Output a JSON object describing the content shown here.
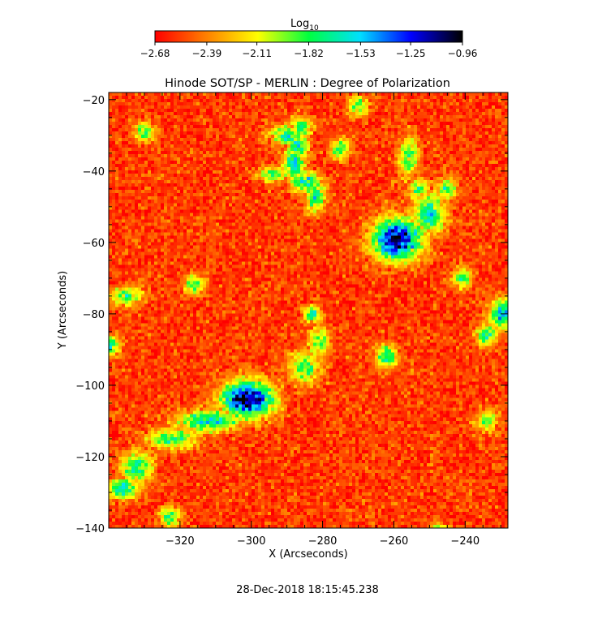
{
  "chart_data": {
    "type": "heatmap",
    "title": "Hinode SOT/SP - MERLIN : Degree of Polarization",
    "xlabel": "X (Arcseconds)",
    "ylabel": "Y (Arcseconds)",
    "xlim": [
      -340,
      -228
    ],
    "ylim": [
      -140,
      -18
    ],
    "xticks": [
      -320,
      -300,
      -280,
      -260,
      -240
    ],
    "yticks": [
      -20,
      -40,
      -60,
      -80,
      -100,
      -120,
      -140
    ],
    "colorbar": {
      "label_base": "Log",
      "label_sub": "10",
      "ticks": [
        -2.68,
        -2.39,
        -2.11,
        -1.82,
        -1.53,
        -1.25,
        -0.96
      ],
      "tick_labels": [
        "−2.68",
        "−2.39",
        "−2.11",
        "−1.82",
        "−1.53",
        "−1.25",
        "−0.96"
      ],
      "colormap": [
        "#ff0000",
        "#ff8000",
        "#ffff00",
        "#00ff40",
        "#00e0ff",
        "#0000ff",
        "#000000"
      ]
    },
    "background_value": -2.55,
    "features": [
      {
        "x": -301,
        "y": -104,
        "sx": 5,
        "sy": 3.5,
        "peak": -0.96
      },
      {
        "x": -259,
        "y": -59,
        "sx": 5,
        "sy": 4,
        "peak": -1.05
      },
      {
        "x": -312,
        "y": -110,
        "sx": 6,
        "sy": 2,
        "peak": -1.6
      },
      {
        "x": -322,
        "y": -115,
        "sx": 5,
        "sy": 2,
        "peak": -1.75
      },
      {
        "x": -332,
        "y": -123,
        "sx": 3,
        "sy": 3,
        "peak": -1.7
      },
      {
        "x": -336,
        "y": -129,
        "sx": 3,
        "sy": 2,
        "peak": -1.6
      },
      {
        "x": -285,
        "y": -95,
        "sx": 3,
        "sy": 3,
        "peak": -1.8
      },
      {
        "x": -281,
        "y": -88,
        "sx": 2,
        "sy": 3,
        "peak": -1.85
      },
      {
        "x": -282,
        "y": -47,
        "sx": 2,
        "sy": 3,
        "peak": -1.7
      },
      {
        "x": -285,
        "y": -43,
        "sx": 3,
        "sy": 2,
        "peak": -1.6
      },
      {
        "x": -288,
        "y": -38,
        "sx": 2,
        "sy": 3,
        "peak": -1.55
      },
      {
        "x": -287,
        "y": -33,
        "sx": 2,
        "sy": 3,
        "peak": -1.6
      },
      {
        "x": -290,
        "y": -30,
        "sx": 3,
        "sy": 2,
        "peak": -1.7
      },
      {
        "x": -286,
        "y": -28,
        "sx": 2,
        "sy": 2,
        "peak": -1.75
      },
      {
        "x": -294,
        "y": -41,
        "sx": 3,
        "sy": 1.5,
        "peak": -1.85
      },
      {
        "x": -275,
        "y": -34,
        "sx": 2,
        "sy": 2,
        "peak": -1.8
      },
      {
        "x": -250,
        "y": -52,
        "sx": 3,
        "sy": 4,
        "peak": -1.6
      },
      {
        "x": -245,
        "y": -45,
        "sx": 2,
        "sy": 2,
        "peak": -1.8
      },
      {
        "x": -253,
        "y": -45,
        "sx": 2,
        "sy": 2,
        "peak": -1.8
      },
      {
        "x": -256,
        "y": -36,
        "sx": 2,
        "sy": 4,
        "peak": -1.8
      },
      {
        "x": -229,
        "y": -80,
        "sx": 3,
        "sy": 3,
        "peak": -1.5
      },
      {
        "x": -234,
        "y": -86,
        "sx": 2,
        "sy": 2,
        "peak": -1.7
      },
      {
        "x": -262,
        "y": -92,
        "sx": 2,
        "sy": 2,
        "peak": -1.6
      },
      {
        "x": -283,
        "y": -80,
        "sx": 1.5,
        "sy": 1.5,
        "peak": -1.6
      },
      {
        "x": -340,
        "y": -89,
        "sx": 2,
        "sy": 2,
        "peak": -1.6
      },
      {
        "x": -335,
        "y": -75,
        "sx": 3,
        "sy": 2,
        "peak": -1.85
      },
      {
        "x": -316,
        "y": -72,
        "sx": 2,
        "sy": 2,
        "peak": -1.85
      },
      {
        "x": -330,
        "y": -29,
        "sx": 2,
        "sy": 2,
        "peak": -1.85
      },
      {
        "x": -241,
        "y": -70,
        "sx": 2,
        "sy": 2,
        "peak": -1.85
      },
      {
        "x": -234,
        "y": -110,
        "sx": 2,
        "sy": 2,
        "peak": -1.85
      },
      {
        "x": -323,
        "y": -137,
        "sx": 2,
        "sy": 2,
        "peak": -1.8
      },
      {
        "x": -247,
        "y": -141,
        "sx": 2,
        "sy": 1.5,
        "peak": -1.75
      },
      {
        "x": -270,
        "y": -22,
        "sx": 2,
        "sy": 2,
        "peak": -1.85
      }
    ]
  },
  "footer": {
    "timestamp": "28-Dec-2018 18:15:45.238"
  }
}
